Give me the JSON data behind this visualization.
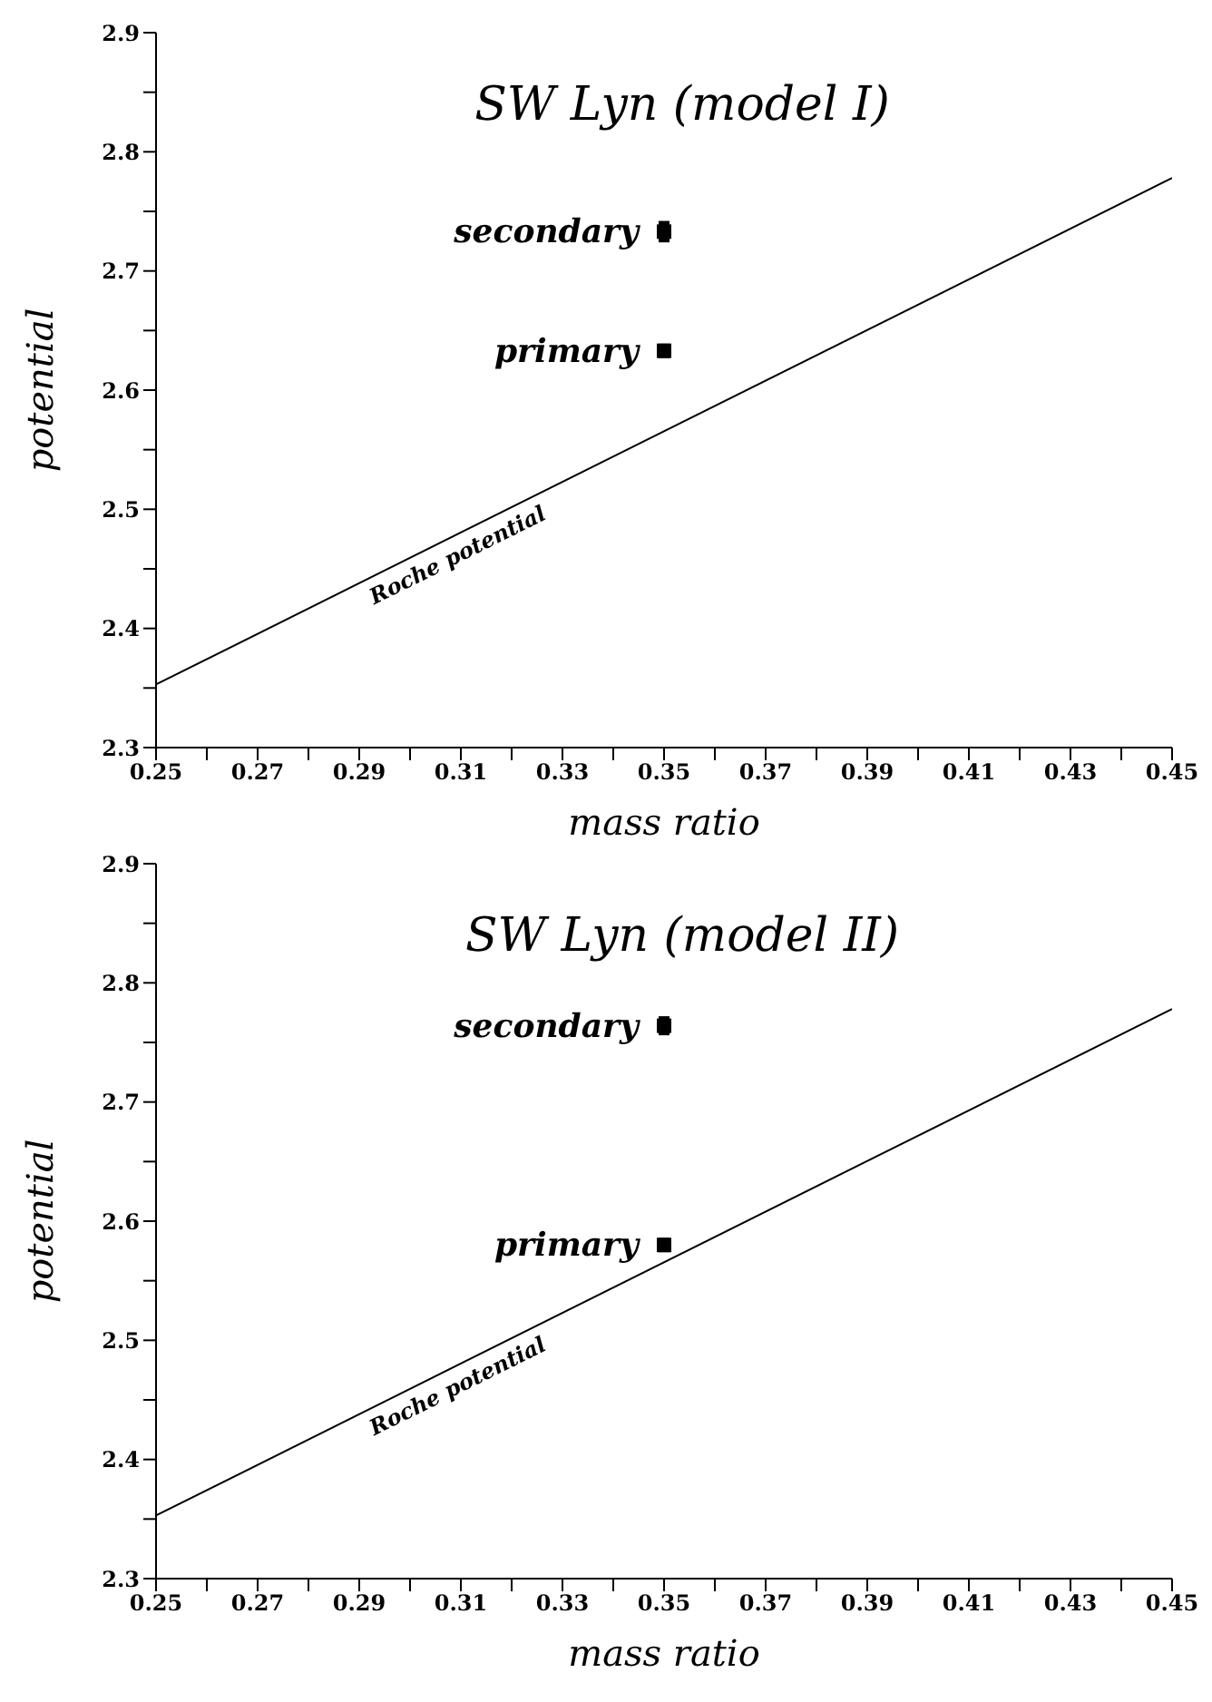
{
  "chart_data": [
    {
      "type": "scatter",
      "title": "SW Lyn (model I)",
      "xlabel": "mass ratio",
      "ylabel": "potential",
      "xlim": [
        0.25,
        0.45
      ],
      "ylim": [
        2.3,
        2.9
      ],
      "xticks": [
        0.25,
        {
          "value": 0.26,
          "label": null
        },
        0.27,
        {
          "value": 0.28,
          "label": null
        },
        0.29,
        {
          "value": 0.3,
          "label": null
        },
        0.31,
        {
          "value": 0.32,
          "label": null
        },
        0.33,
        {
          "value": 0.34,
          "label": null
        },
        0.35,
        {
          "value": 0.36,
          "label": null
        },
        0.37,
        {
          "value": 0.38,
          "label": null
        },
        0.39,
        {
          "value": 0.4,
          "label": null
        },
        0.41,
        {
          "value": 0.42,
          "label": null
        },
        0.43,
        {
          "value": 0.44,
          "label": null
        },
        0.45
      ],
      "yticks": [
        2.3,
        {
          "value": 2.35,
          "label": null
        },
        2.4,
        {
          "value": 2.45,
          "label": null
        },
        2.5,
        {
          "value": 2.55,
          "label": null
        },
        2.6,
        {
          "value": 2.65,
          "label": null
        },
        2.7,
        {
          "value": 2.75,
          "label": null
        },
        2.8,
        {
          "value": 2.85,
          "label": null
        },
        2.9
      ],
      "grid": false,
      "series": [
        {
          "type": "line",
          "name": "Roche potential",
          "color": "#000000",
          "marker": "none",
          "x": [
            0.25,
            0.45
          ],
          "values": [
            2.353,
            2.778
          ]
        },
        {
          "name": "secondary",
          "color": "#000000",
          "marker": "square",
          "x": [
            0.35
          ],
          "values": [
            2.733
          ],
          "errors": [
            0.009
          ]
        },
        {
          "name": "primary",
          "color": "#000000",
          "marker": "square",
          "x": [
            0.35
          ],
          "values": [
            2.633
          ],
          "errors": [
            0.006
          ]
        }
      ]
    },
    {
      "type": "scatter",
      "title": "SW Lyn (model II)",
      "xlabel": "mass ratio",
      "ylabel": "potential",
      "xlim": [
        0.25,
        0.45
      ],
      "ylim": [
        2.3,
        2.9
      ],
      "xticks": [
        0.25,
        {
          "value": 0.26,
          "label": null
        },
        0.27,
        {
          "value": 0.28,
          "label": null
        },
        0.29,
        {
          "value": 0.3,
          "label": null
        },
        0.31,
        {
          "value": 0.32,
          "label": null
        },
        0.33,
        {
          "value": 0.34,
          "label": null
        },
        0.35,
        {
          "value": 0.36,
          "label": null
        },
        0.37,
        {
          "value": 0.38,
          "label": null
        },
        0.39,
        {
          "value": 0.4,
          "label": null
        },
        0.41,
        {
          "value": 0.42,
          "label": null
        },
        0.43,
        {
          "value": 0.44,
          "label": null
        },
        0.45
      ],
      "yticks": [
        2.3,
        {
          "value": 2.35,
          "label": null
        },
        2.4,
        {
          "value": 2.45,
          "label": null
        },
        2.5,
        {
          "value": 2.55,
          "label": null
        },
        2.6,
        {
          "value": 2.65,
          "label": null
        },
        2.7,
        {
          "value": 2.75,
          "label": null
        },
        2.8,
        {
          "value": 2.85,
          "label": null
        },
        2.9
      ],
      "grid": false,
      "series": [
        {
          "type": "line",
          "name": "Roche potential",
          "color": "#000000",
          "marker": "none",
          "x": [
            0.25,
            0.45
          ],
          "values": [
            2.353,
            2.778
          ]
        },
        {
          "name": "secondary",
          "color": "#000000",
          "marker": "square",
          "x": [
            0.35
          ],
          "values": [
            2.764
          ],
          "errors": [
            0.008
          ]
        },
        {
          "name": "primary",
          "color": "#000000",
          "marker": "square",
          "x": [
            0.35
          ],
          "values": [
            2.58
          ],
          "errors": [
            0.006
          ]
        }
      ]
    }
  ]
}
